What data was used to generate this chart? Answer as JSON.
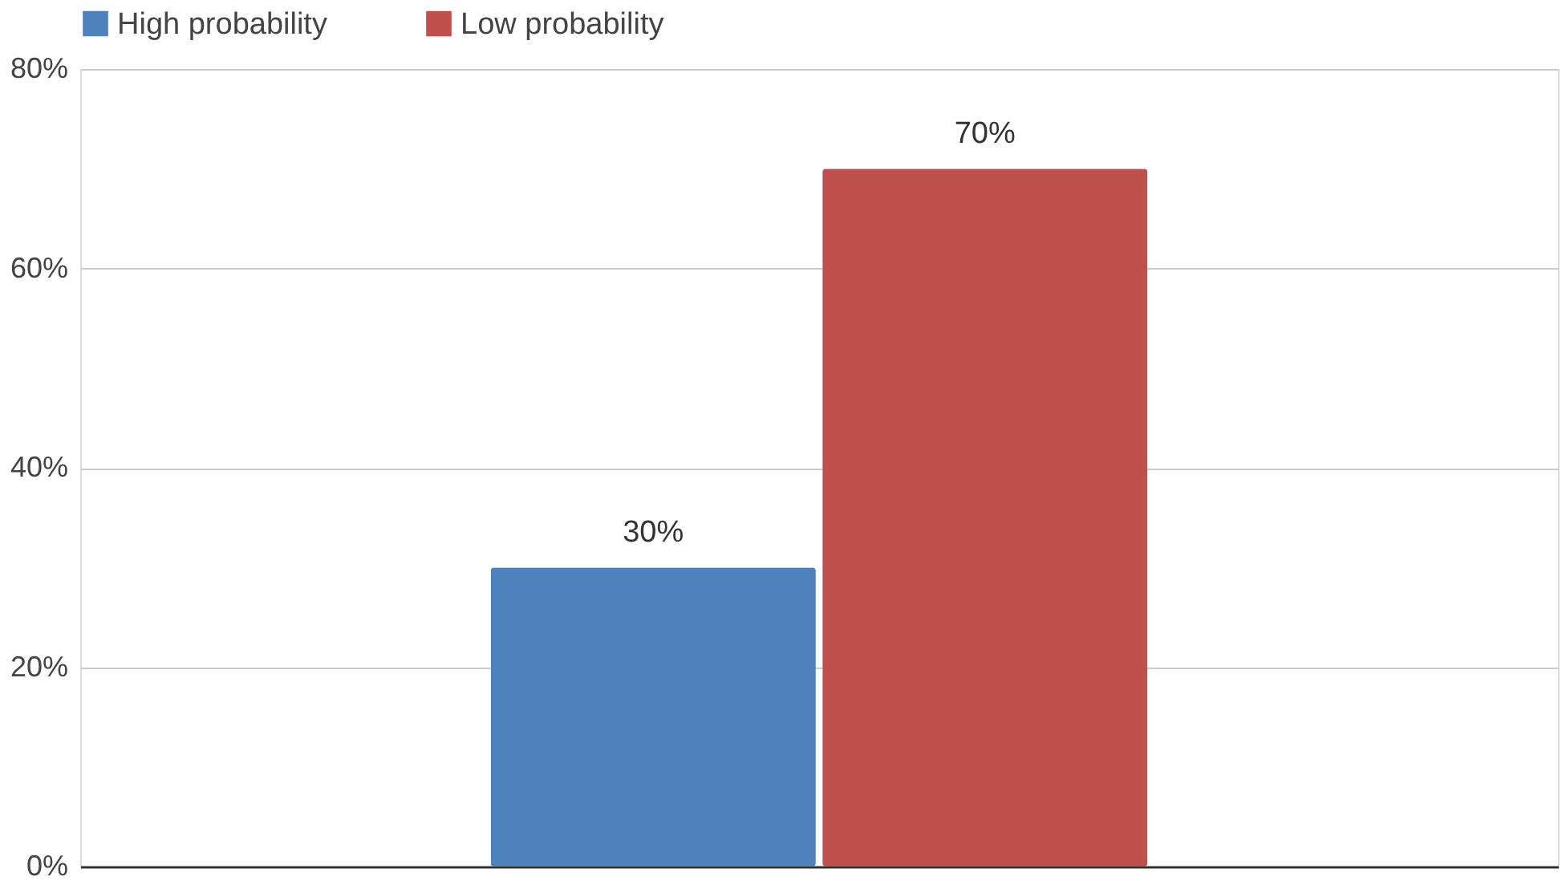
{
  "chart_data": {
    "type": "bar",
    "categories": [
      null
    ],
    "series": [
      {
        "name": "High probability",
        "color": "#4f81bd",
        "values": [
          30
        ],
        "value_labels": [
          "30%"
        ]
      },
      {
        "name": "Low probability",
        "color": "#c0504d",
        "values": [
          70
        ],
        "value_labels": [
          "70%"
        ]
      }
    ],
    "ylim": [
      0,
      80
    ],
    "yticks": [
      {
        "value": 0,
        "label": "0%"
      },
      {
        "value": 20,
        "label": "20%"
      },
      {
        "value": 40,
        "label": "40%"
      },
      {
        "value": 60,
        "label": "60%"
      },
      {
        "value": 80,
        "label": "80%"
      }
    ],
    "grid": "y",
    "legend": "top"
  }
}
